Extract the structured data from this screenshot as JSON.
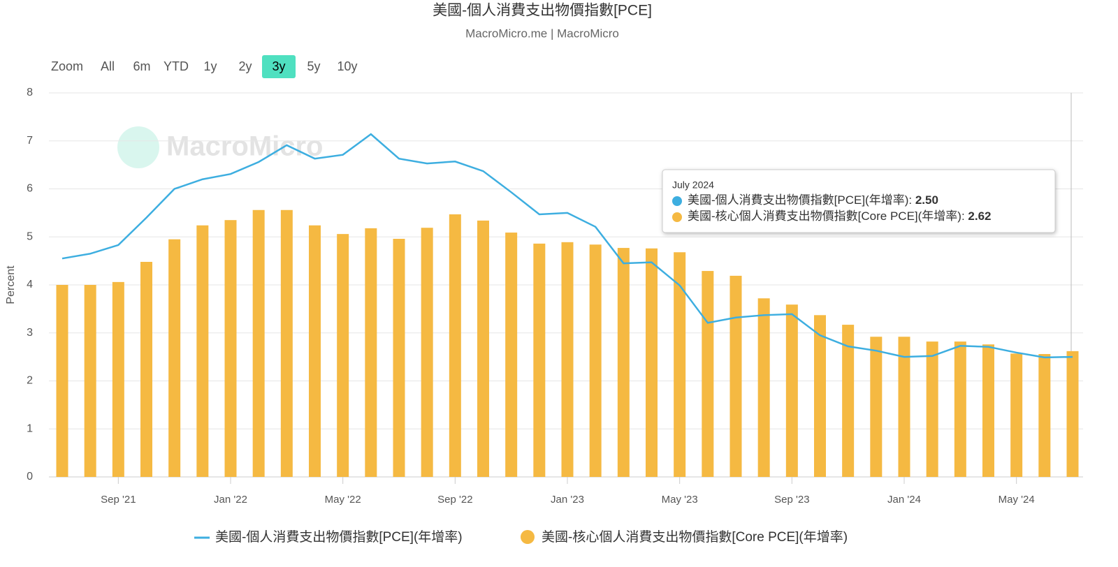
{
  "chart_data": {
    "type": "bar_line",
    "title": "美國-個人消費支出物價指數[PCE]",
    "subtitle": "MacroMicro.me | MacroMicro",
    "watermark": "MacroMicro",
    "y_label": "Percent",
    "range_selector": {
      "label": "Zoom",
      "buttons": [
        "All",
        "6m",
        "YTD",
        "1y",
        "2y",
        "3y",
        "5y",
        "10y"
      ],
      "selected": "3y"
    },
    "categories": [
      null,
      null,
      "Sep '21",
      null,
      null,
      null,
      "Jan '22",
      null,
      null,
      null,
      "May '22",
      null,
      null,
      null,
      "Sep '22",
      null,
      null,
      null,
      "Jan '23",
      null,
      null,
      null,
      "May '23",
      null,
      null,
      null,
      "Sep '23",
      null,
      null,
      null,
      "Jan '24",
      null,
      null,
      null,
      "May '24",
      null,
      null
    ],
    "series": [
      {
        "name": "美國-個人消費支出物價指數[PCE](年增率)",
        "type": "line",
        "color": "#3daee0",
        "values": [
          4.55,
          4.65,
          4.83,
          5.4,
          6.0,
          6.2,
          6.31,
          6.56,
          6.91,
          6.63,
          6.71,
          7.14,
          6.63,
          6.53,
          6.57,
          6.37,
          5.93,
          5.47,
          5.5,
          5.21,
          4.45,
          4.47,
          3.99,
          3.21,
          3.32,
          3.37,
          3.39,
          2.95,
          2.72,
          2.63,
          2.5,
          2.52,
          2.73,
          2.71,
          2.59,
          2.49,
          2.5
        ]
      },
      {
        "name": "美國-核心個人消費支出物價指數[Core PCE](年增率)",
        "type": "bar",
        "color": "#f5b942",
        "values": [
          4.0,
          4.0,
          4.06,
          4.48,
          4.95,
          5.24,
          5.35,
          5.56,
          5.56,
          5.24,
          5.06,
          5.18,
          4.96,
          5.19,
          5.47,
          5.34,
          5.09,
          4.86,
          4.89,
          4.84,
          4.77,
          4.76,
          4.68,
          4.29,
          4.19,
          3.72,
          3.59,
          3.37,
          3.17,
          2.92,
          2.92,
          2.82,
          2.82,
          2.76,
          2.57,
          2.56,
          2.62
        ]
      }
    ],
    "ylim": [
      0,
      8
    ],
    "yticks": [
      0,
      1,
      2,
      3,
      4,
      5,
      6,
      7,
      8
    ],
    "grid": true,
    "legend": "bottom",
    "tooltip": {
      "title": "July 2024",
      "items": [
        {
          "label": "美國-個人消費支出物價指數[PCE](年增率): ",
          "value_label": "2.50"
        },
        {
          "label": "美國-核心個人消費支出物價指數[Core PCE](年增率): ",
          "value_label": "2.62"
        }
      ]
    }
  }
}
